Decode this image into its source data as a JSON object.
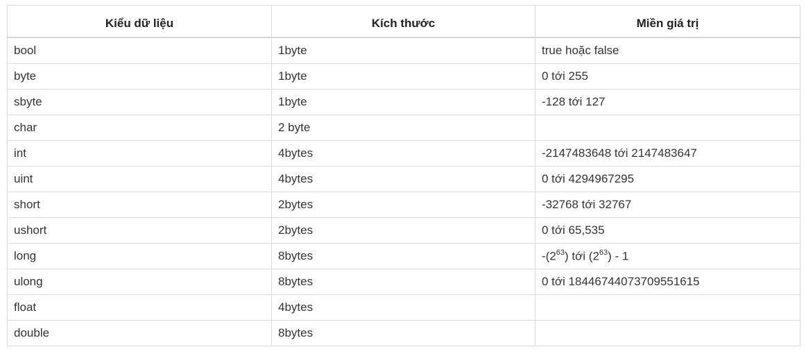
{
  "table": {
    "headers": [
      "Kiểu dữ liệu",
      "Kích thước",
      "Miền giá trị"
    ],
    "rows": [
      {
        "type": "bool",
        "size": "1byte",
        "range": "true hoặc false"
      },
      {
        "type": "byte",
        "size": "1byte",
        "range": "0 tới 255"
      },
      {
        "type": "sbyte",
        "size": "1byte",
        "range": "-128 tới 127"
      },
      {
        "type": "char",
        "size": "2 byte",
        "range": ""
      },
      {
        "type": "int",
        "size": "4bytes",
        "range": "-2147483648 tới 2147483647"
      },
      {
        "type": "uint",
        "size": "4bytes",
        "range": "0 tới 4294967295"
      },
      {
        "type": "short",
        "size": "2bytes",
        "range": "-32768 tới 32767"
      },
      {
        "type": "ushort",
        "size": "2bytes",
        "range": "0 tới 65,535"
      },
      {
        "type": "long",
        "size": "8bytes",
        "range_parts": {
          "p1": "-(2",
          "exp1": "63",
          "p2": ") tới (2",
          "exp2": "63",
          "p3": ") - 1"
        }
      },
      {
        "type": "ulong",
        "size": "8bytes",
        "range": "0 tới 18446744073709551615"
      },
      {
        "type": "float",
        "size": "4bytes",
        "range": ""
      },
      {
        "type": "double",
        "size": "8bytes",
        "range": ""
      }
    ]
  }
}
